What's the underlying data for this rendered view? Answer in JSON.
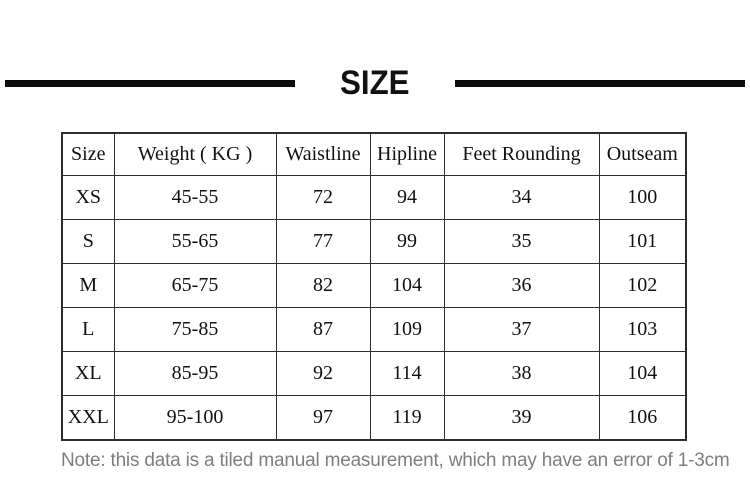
{
  "title": {
    "text": "SIZE"
  },
  "table": {
    "columns": [
      "Size",
      "Weight ( KG )",
      "Waistline",
      "Hipline",
      "Feet Rounding",
      "Outseam"
    ],
    "rows": [
      [
        "XS",
        "45-55",
        "72",
        "94",
        "34",
        "100"
      ],
      [
        "S",
        "55-65",
        "77",
        "99",
        "35",
        "101"
      ],
      [
        "M",
        "65-75",
        "82",
        "104",
        "36",
        "102"
      ],
      [
        "L",
        "75-85",
        "87",
        "109",
        "37",
        "103"
      ],
      [
        "XL",
        "85-95",
        "92",
        "114",
        "38",
        "104"
      ],
      [
        "XXL",
        "95-100",
        "97",
        "119",
        "39",
        "106"
      ]
    ]
  },
  "note": {
    "text": "Note: this data is a tiled manual measurement, which may have an error of 1-3cm"
  },
  "colors": {
    "background": "#ffffff",
    "rule": "#0d0d0d",
    "table_border": "#2e2e2e",
    "table_text": "#111111",
    "note_text": "#7e7e7e"
  }
}
